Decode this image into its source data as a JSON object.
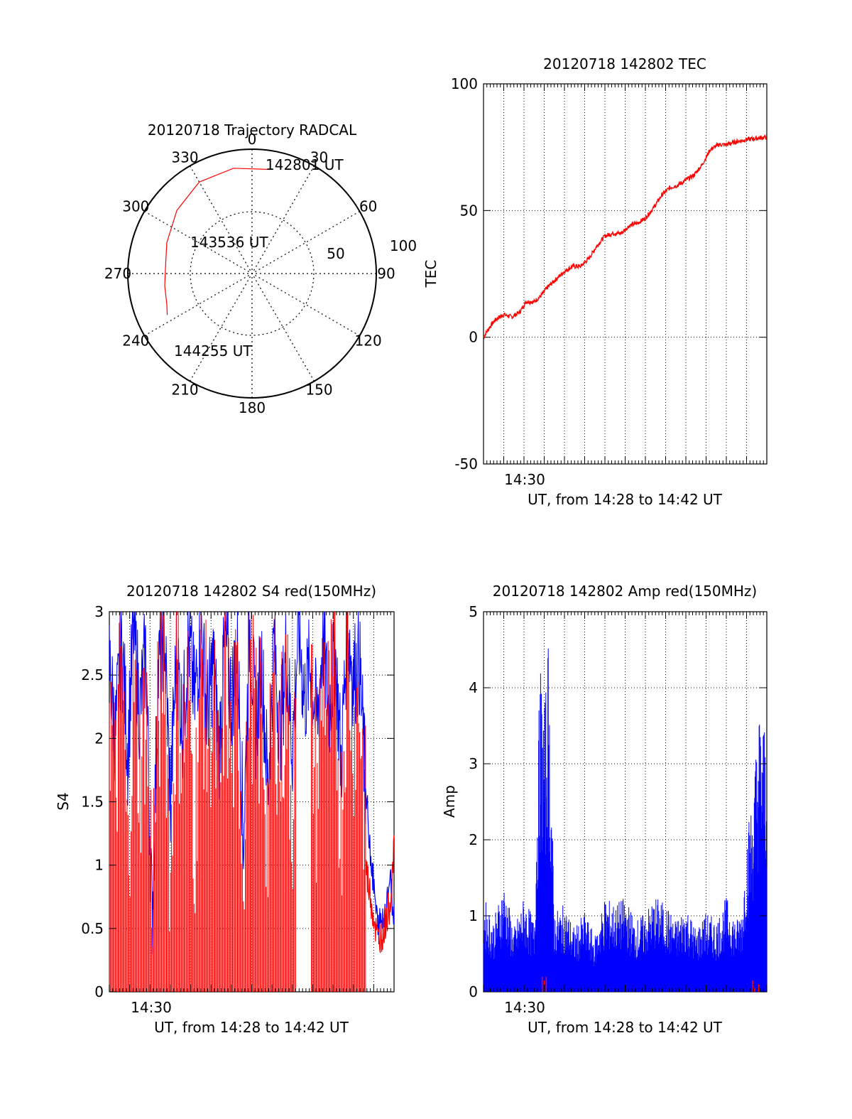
{
  "chart_data": [
    {
      "type": "polar",
      "title": "20120718 Trajectory RADCAL",
      "azimuth_labels": [
        "0",
        "30",
        "60",
        "90",
        "120",
        "150",
        "180",
        "210",
        "240",
        "270",
        "300",
        "330"
      ],
      "radial_labels": [
        "50",
        "100"
      ],
      "radial_range": [
        0,
        100
      ],
      "grid": true,
      "series": [
        {
          "color": "#ff0000",
          "points": [
            {
              "azimuth": 10,
              "radius": 85
            },
            {
              "azimuth": 350,
              "radius": 86
            },
            {
              "azimuth": 330,
              "radius": 85
            },
            {
              "azimuth": 310,
              "radius": 79
            },
            {
              "azimuth": 290,
              "radius": 73
            },
            {
              "azimuth": 277,
              "radius": 70
            },
            {
              "azimuth": 262,
              "radius": 71
            },
            {
              "azimuth": 250,
              "radius": 73
            },
            {
              "azimuth": 244,
              "radius": 76
            }
          ]
        }
      ],
      "annotations": [
        {
          "text": "142801 UT",
          "azimuth": 25,
          "radius": 88
        },
        {
          "text": "143536 UT",
          "azimuth": 300,
          "radius": 30
        },
        {
          "text": "144255 UT",
          "azimuth": 232,
          "radius": 87
        }
      ]
    },
    {
      "type": "line",
      "title": "20120718 142802 TEC",
      "xlabel": "UT, from 14:28 to 14:42 UT",
      "ylabel": "TEC",
      "xlim": [
        "14:28",
        "14:42"
      ],
      "ylim": [
        -50,
        100
      ],
      "yticks": [
        "100",
        "50",
        "0",
        "-50"
      ],
      "xticks": [
        "14:30"
      ],
      "grid": true,
      "series": [
        {
          "color": "#ff0000",
          "x_minutes": [
            0,
            0.3,
            0.6,
            1.0,
            1.4,
            1.8,
            2.1,
            2.5,
            2.8,
            3.2,
            3.6,
            4.0,
            4.4,
            4.8,
            5.2,
            5.6,
            6.0,
            6.4,
            6.8,
            7.2,
            7.6,
            8.0,
            8.4,
            8.8,
            9.2,
            9.6,
            10.0,
            10.4,
            10.8,
            11.2,
            11.6,
            12.0,
            12.4,
            13.0,
            14.0
          ],
          "values": [
            0,
            4,
            7,
            9,
            8,
            10,
            14,
            14,
            16,
            20,
            23,
            26,
            28,
            28,
            31,
            36,
            40,
            41,
            41,
            44,
            45,
            47,
            51,
            56,
            59,
            60,
            62,
            64,
            68,
            74,
            76,
            76,
            77,
            78,
            79
          ]
        }
      ]
    },
    {
      "type": "line",
      "title": "20120718 142802 S4 red(150MHz)",
      "xlabel": "UT, from 14:28 to 14:42 UT",
      "ylabel": "S4",
      "xlim": [
        "14:28",
        "14:42"
      ],
      "ylim": [
        0,
        3
      ],
      "yticks": [
        "0",
        "0.5",
        "1",
        "1.5",
        "2",
        "2.5",
        "3"
      ],
      "xticks": [
        "14:30"
      ],
      "grid": true,
      "series": [
        {
          "color": "#ff0000",
          "x_minutes": [
            0.0,
            0.3,
            0.6,
            0.9,
            1.2,
            1.5,
            1.8,
            2.1,
            2.4,
            2.7,
            3.0,
            3.3,
            3.6,
            3.9,
            4.2,
            4.5,
            4.8,
            5.1,
            5.4,
            5.7,
            6.0,
            6.3,
            6.6,
            6.9,
            7.2,
            7.5,
            7.8,
            8.1,
            8.4,
            8.7,
            9.0,
            9.3,
            9.6,
            9.9,
            10.2,
            10.5,
            10.8,
            11.1,
            11.4,
            11.7,
            12.0,
            12.3,
            12.6,
            12.9,
            13.2,
            13.5,
            13.8,
            14.0
          ],
          "values": [
            2.1,
            1.2,
            2.4,
            0.6,
            2.2,
            1.4,
            2.0,
            0.5,
            1.8,
            2.5,
            0.6,
            2.2,
            1.6,
            2.1,
            0.9,
            2.4,
            1.7,
            2.0,
            1.1,
            2.3,
            1.5,
            2.0,
            0.8,
            2.5,
            1.6,
            1.9,
            0.9,
            2.2,
            1.5,
            2.1,
            1.1,
            2.4,
            1.7,
            2.0,
            1.2,
            2.3,
            1.8,
            2.1,
            1.0,
            2.4,
            1.8,
            2.0,
            1.0,
            0.7,
            0.4,
            0.5,
            0.7,
            1.1
          ]
        },
        {
          "color": "#0000ff",
          "x_minutes": [
            0.0,
            0.3,
            0.6,
            0.9,
            1.2,
            1.5,
            1.8,
            2.1,
            2.4,
            2.7,
            3.0,
            3.3,
            3.6,
            3.9,
            4.2,
            4.5,
            4.8,
            5.1,
            5.4,
            5.7,
            6.0,
            6.3,
            6.6,
            6.9,
            7.2,
            7.5,
            7.8,
            8.1,
            8.4,
            8.7,
            9.0,
            9.3,
            9.6,
            9.9,
            10.2,
            10.5,
            10.8,
            11.1,
            11.4,
            11.7,
            12.0,
            12.3,
            12.6,
            12.9,
            13.2,
            13.5,
            13.8,
            14.0
          ],
          "values": [
            2.6,
            2.0,
            2.8,
            1.9,
            2.9,
            2.2,
            2.7,
            0.55,
            2.5,
            2.9,
            1.5,
            2.7,
            2.1,
            2.8,
            2.3,
            2.9,
            2.2,
            2.6,
            1.9,
            2.8,
            2.3,
            2.7,
            1.2,
            2.9,
            2.1,
            2.6,
            1.6,
            2.8,
            2.0,
            2.7,
            1.9,
            2.9,
            2.3,
            2.6,
            2.1,
            2.8,
            2.2,
            2.7,
            1.8,
            2.9,
            2.5,
            2.6,
            1.6,
            1.0,
            0.5,
            0.6,
            0.9,
            0.6
          ]
        }
      ]
    },
    {
      "type": "line",
      "title": "20120718 142802 Amp red(150MHz)",
      "xlabel": "UT, from 14:28 to 14:42 UT",
      "ylabel": "Amp",
      "xlim": [
        "14:28",
        "14:42"
      ],
      "ylim": [
        0,
        5
      ],
      "yticks": [
        "0",
        "1",
        "2",
        "3",
        "4",
        "5"
      ],
      "xticks": [
        "14:30"
      ],
      "grid": true,
      "series": [
        {
          "color": "#0000ff",
          "x_minutes": [
            0.0,
            0.5,
            1.0,
            1.5,
            2.0,
            2.5,
            2.8,
            3.0,
            3.2,
            3.5,
            4.0,
            4.5,
            5.0,
            5.5,
            6.0,
            6.5,
            7.0,
            7.5,
            8.0,
            8.5,
            9.0,
            9.5,
            10.0,
            10.5,
            11.0,
            11.5,
            12.0,
            12.5,
            12.8,
            13.0,
            13.3,
            13.6,
            14.0
          ],
          "values": [
            1.2,
            0.9,
            1.4,
            0.8,
            1.2,
            0.9,
            4.2,
            3.5,
            4.5,
            1.0,
            1.1,
            0.8,
            1.0,
            0.7,
            1.2,
            1.1,
            1.2,
            0.9,
            1.0,
            1.2,
            1.1,
            0.9,
            1.1,
            0.8,
            1.0,
            0.9,
            1.2,
            0.9,
            1.1,
            2.0,
            2.5,
            3.6,
            3.4
          ]
        },
        {
          "color": "#ff0000",
          "x_minutes": [
            2.9,
            3.0,
            3.1,
            13.3,
            13.4,
            13.6
          ],
          "values": [
            0.2,
            0.15,
            0.2,
            0.15,
            0.05,
            0.1
          ]
        }
      ]
    }
  ]
}
